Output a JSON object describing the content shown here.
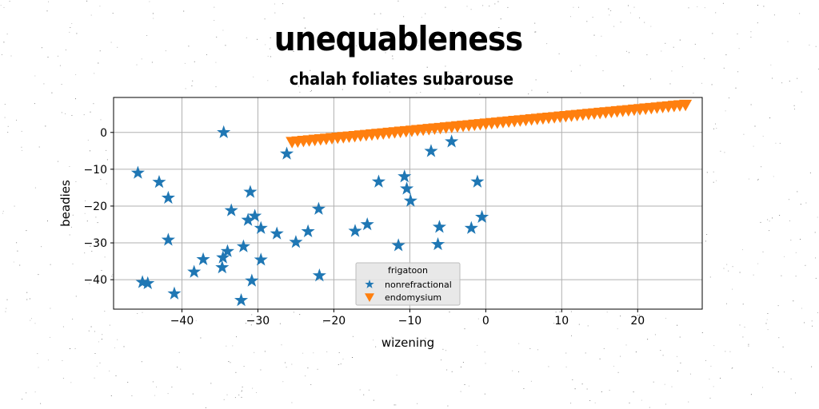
{
  "chart_data": {
    "type": "scatter",
    "title": "unequableness",
    "subtitle": "chalah foliates subarouse",
    "xlabel": "wizening",
    "ylabel": "beadies",
    "xlim": [
      -49,
      28.5
    ],
    "ylim": [
      -48,
      9.5
    ],
    "xticks": [
      -40,
      -30,
      -20,
      -10,
      0,
      10,
      20
    ],
    "yticks": [
      0,
      -10,
      -20,
      -30,
      -40
    ],
    "grid": true,
    "legend": {
      "title": "frigatoon",
      "placement": "lower-center"
    },
    "series": [
      {
        "name": "nonrefractional",
        "marker": "star",
        "color": "#1f77b4",
        "points": [
          [
            -34.5,
            0
          ],
          [
            -45.8,
            -11
          ],
          [
            -43,
            -13.5
          ],
          [
            -41.8,
            -17.8
          ],
          [
            -31,
            -16.2
          ],
          [
            -26.2,
            -5.8
          ],
          [
            -33.5,
            -21.2
          ],
          [
            -31.3,
            -23.8
          ],
          [
            -30.4,
            -22.7
          ],
          [
            -29.6,
            -26
          ],
          [
            -27.5,
            -27.5
          ],
          [
            -22,
            -20.8
          ],
          [
            -23.4,
            -26.9
          ],
          [
            -25,
            -29.8
          ],
          [
            -41.8,
            -29.2
          ],
          [
            -31.9,
            -31
          ],
          [
            -34,
            -32.3
          ],
          [
            -34.6,
            -34
          ],
          [
            -34.7,
            -36.7
          ],
          [
            -37.2,
            -34.5
          ],
          [
            -29.6,
            -34.6
          ],
          [
            -38.4,
            -37.9
          ],
          [
            -30.8,
            -40.3
          ],
          [
            -21.9,
            -38.9
          ],
          [
            -45.2,
            -40.7
          ],
          [
            -44.5,
            -41
          ],
          [
            -41,
            -43.8
          ],
          [
            -32.2,
            -45.6
          ],
          [
            -14.1,
            -13.4
          ],
          [
            -10.7,
            -12
          ],
          [
            -10.4,
            -15.3
          ],
          [
            -9.9,
            -18.6
          ],
          [
            -7.2,
            -5.1
          ],
          [
            -4.5,
            -2.5
          ],
          [
            -1.1,
            -13.4
          ],
          [
            -17.2,
            -26.8
          ],
          [
            -15.6,
            -25
          ],
          [
            -11.5,
            -30.7
          ],
          [
            -6.1,
            -25.7
          ],
          [
            -6.3,
            -30.4
          ],
          [
            -0.5,
            -23
          ],
          [
            -1.9,
            -26
          ]
        ]
      },
      {
        "name": "endomysium",
        "marker": "triangle-down",
        "color": "#ff7f0e",
        "x_start": -25.5,
        "y_start": -2.6,
        "x_end": 26.3,
        "y_end": 7.5,
        "count": 70
      }
    ]
  }
}
